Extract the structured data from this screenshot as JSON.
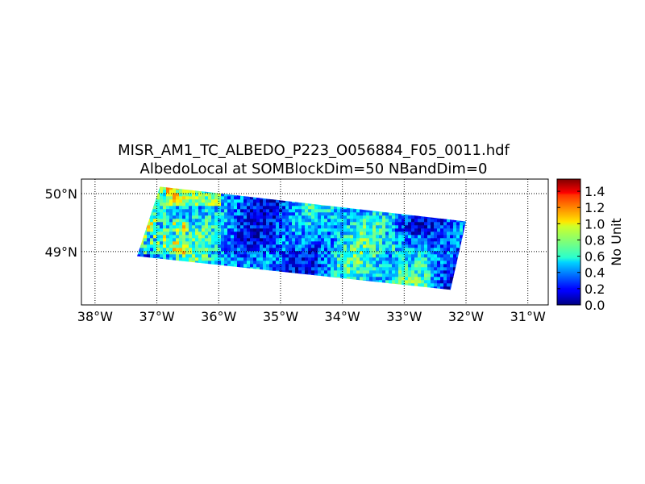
{
  "chart_data": {
    "type": "heatmap",
    "title": "MISR_AM1_TC_ALBEDO_P223_O056884_F05_0011.hdf",
    "subtitle": "AlbedoLocal at SOMBlockDim=50 NBandDim=0",
    "xlabel": "",
    "ylabel": "",
    "xlim": [
      -38.22,
      -30.67
    ],
    "ylim": [
      48.08,
      50.25
    ],
    "x_ticks": [
      -38,
      -37,
      -36,
      -35,
      -34,
      -33,
      -32,
      -31
    ],
    "x_tick_labels": [
      "38°W",
      "37°W",
      "36°W",
      "35°W",
      "34°W",
      "33°W",
      "32°W",
      "31°W"
    ],
    "y_ticks": [
      49,
      50
    ],
    "y_tick_labels": [
      "49°N",
      "50°N"
    ],
    "grid": "dotted",
    "swath_corners": [
      [
        -36.95,
        50.12
      ],
      [
        -32.0,
        49.52
      ],
      [
        -32.25,
        48.34
      ],
      [
        -37.32,
        48.92
      ]
    ],
    "value_range": [
      0.0,
      1.5
    ],
    "typical_values": {
      "mean": 0.45,
      "min": 0.0,
      "max": 1.5
    },
    "colorbar": {
      "label": "No Unit",
      "colormap": "jet",
      "min": 0.0,
      "max": 1.55,
      "ticks": [
        0.0,
        0.2,
        0.4,
        0.6,
        0.8,
        1.0,
        1.2,
        1.4
      ],
      "tick_labels": [
        "0.0",
        "0.2",
        "0.4",
        "0.6",
        "0.8",
        "1.0",
        "1.2",
        "1.4"
      ],
      "placement": "right"
    }
  }
}
